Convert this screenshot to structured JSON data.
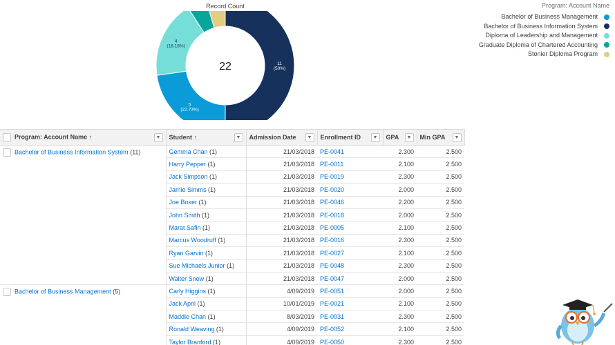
{
  "chart": {
    "title": "Record Count",
    "total_label": "22"
  },
  "chart_data": {
    "type": "pie",
    "title": "Record Count",
    "legend_title": "Program: Account Name",
    "legend_position": "top-right",
    "center_label": "22",
    "total": 22,
    "slices": [
      {
        "name": "Bachelor of Business Management",
        "value": 5,
        "label": "5",
        "pct_label": "(22.73%)",
        "color": "#0b9bd8"
      },
      {
        "name": "Bachelor of Business Information System",
        "value": 11,
        "label": "11",
        "pct_label": "(50%)",
        "color": "#16325c"
      },
      {
        "name": "Diploma of Leadership and Management",
        "value": 4,
        "label": "4",
        "pct_label": "(18.18%)",
        "color": "#76ded9"
      },
      {
        "name": "Graduate Diploma of Chartered Accounting",
        "value": 1,
        "label": "",
        "pct_label": "",
        "color": "#08a69a"
      },
      {
        "name": "Stonier Diploma Program",
        "value": 1,
        "label": "",
        "pct_label": "",
        "color": "#e3cd81"
      }
    ]
  },
  "legend": {
    "title": "Program: Account Name",
    "items": [
      {
        "label": "Bachelor of Business Management",
        "color": "#0b9bd8"
      },
      {
        "label": "Bachelor of Business Information System",
        "color": "#16325c"
      },
      {
        "label": "Diploma of Leadership and Management",
        "color": "#76ded9"
      },
      {
        "label": "Graduate Diploma of Chartered Accounting",
        "color": "#08a69a"
      },
      {
        "label": "Stonier Diploma Program",
        "color": "#e3cd81"
      }
    ]
  },
  "table": {
    "headers": {
      "program": "Program: Account Name ↑",
      "student": "Student ↑",
      "admission": "Admission Date",
      "enrollment": "Enrollment ID",
      "gpa": "GPA",
      "min_gpa": "Min GPA"
    },
    "groups": [
      {
        "name": "Bachelor of Business Information System",
        "count": "(11)",
        "rows": [
          {
            "student": "Gemma Chan",
            "count": "(1)",
            "date": "21/03/2018",
            "id": "PE-0041",
            "gpa": "2.300",
            "min": "2.500"
          },
          {
            "student": "Harry Pepper",
            "count": "(1)",
            "date": "21/03/2018",
            "id": "PE-0011",
            "gpa": "2.100",
            "min": "2.500"
          },
          {
            "student": "Jack Simpson",
            "count": "(1)",
            "date": "21/03/2018",
            "id": "PE-0019",
            "gpa": "2.300",
            "min": "2.500"
          },
          {
            "student": "Jamie Simms",
            "count": "(1)",
            "date": "21/03/2018",
            "id": "PE-0020",
            "gpa": "2.000",
            "min": "2.500"
          },
          {
            "student": "Joe Boxer",
            "count": "(1)",
            "date": "21/03/2018",
            "id": "PE-0046",
            "gpa": "2.200",
            "min": "2.500"
          },
          {
            "student": "John Smith",
            "count": "(1)",
            "date": "21/03/2018",
            "id": "PE-0018",
            "gpa": "2.000",
            "min": "2.500"
          },
          {
            "student": "Marat Safin",
            "count": "(1)",
            "date": "21/03/2018",
            "id": "PE-0005",
            "gpa": "2.100",
            "min": "2.500"
          },
          {
            "student": "Marcus Woodruff",
            "count": "(1)",
            "date": "21/03/2018",
            "id": "PE-0016",
            "gpa": "2.300",
            "min": "2.500"
          },
          {
            "student": "Ryan Garvin",
            "count": "(1)",
            "date": "21/03/2018",
            "id": "PE-0027",
            "gpa": "2.100",
            "min": "2.500"
          },
          {
            "student": "Sue Michaels Junior",
            "count": "(1)",
            "date": "21/03/2018",
            "id": "PE-0048",
            "gpa": "2.300",
            "min": "2.500"
          },
          {
            "student": "Walter Snow",
            "count": "(1)",
            "date": "21/03/2018",
            "id": "PE-0047",
            "gpa": "2.000",
            "min": "2.500"
          }
        ]
      },
      {
        "name": "Bachelor of Business Management",
        "count": "(5)",
        "rows": [
          {
            "student": "Carly Higgins",
            "count": "(1)",
            "date": "4/09/2019",
            "id": "PE-0051",
            "gpa": "2.000",
            "min": "2.500"
          },
          {
            "student": "Jack April",
            "count": "(1)",
            "date": "10/01/2019",
            "id": "PE-0021",
            "gpa": "2.100",
            "min": "2.500"
          },
          {
            "student": "Maddie Chan",
            "count": "(1)",
            "date": "8/03/2019",
            "id": "PE-0031",
            "gpa": "2.300",
            "min": "2.500"
          },
          {
            "student": "Ronald Weaving",
            "count": "(1)",
            "date": "4/09/2019",
            "id": "PE-0052",
            "gpa": "2.100",
            "min": "2.500"
          },
          {
            "student": "Taylor Branford",
            "count": "(1)",
            "date": "4/09/2019",
            "id": "PE-0050",
            "gpa": "2.300",
            "min": "2.500"
          }
        ]
      }
    ]
  }
}
